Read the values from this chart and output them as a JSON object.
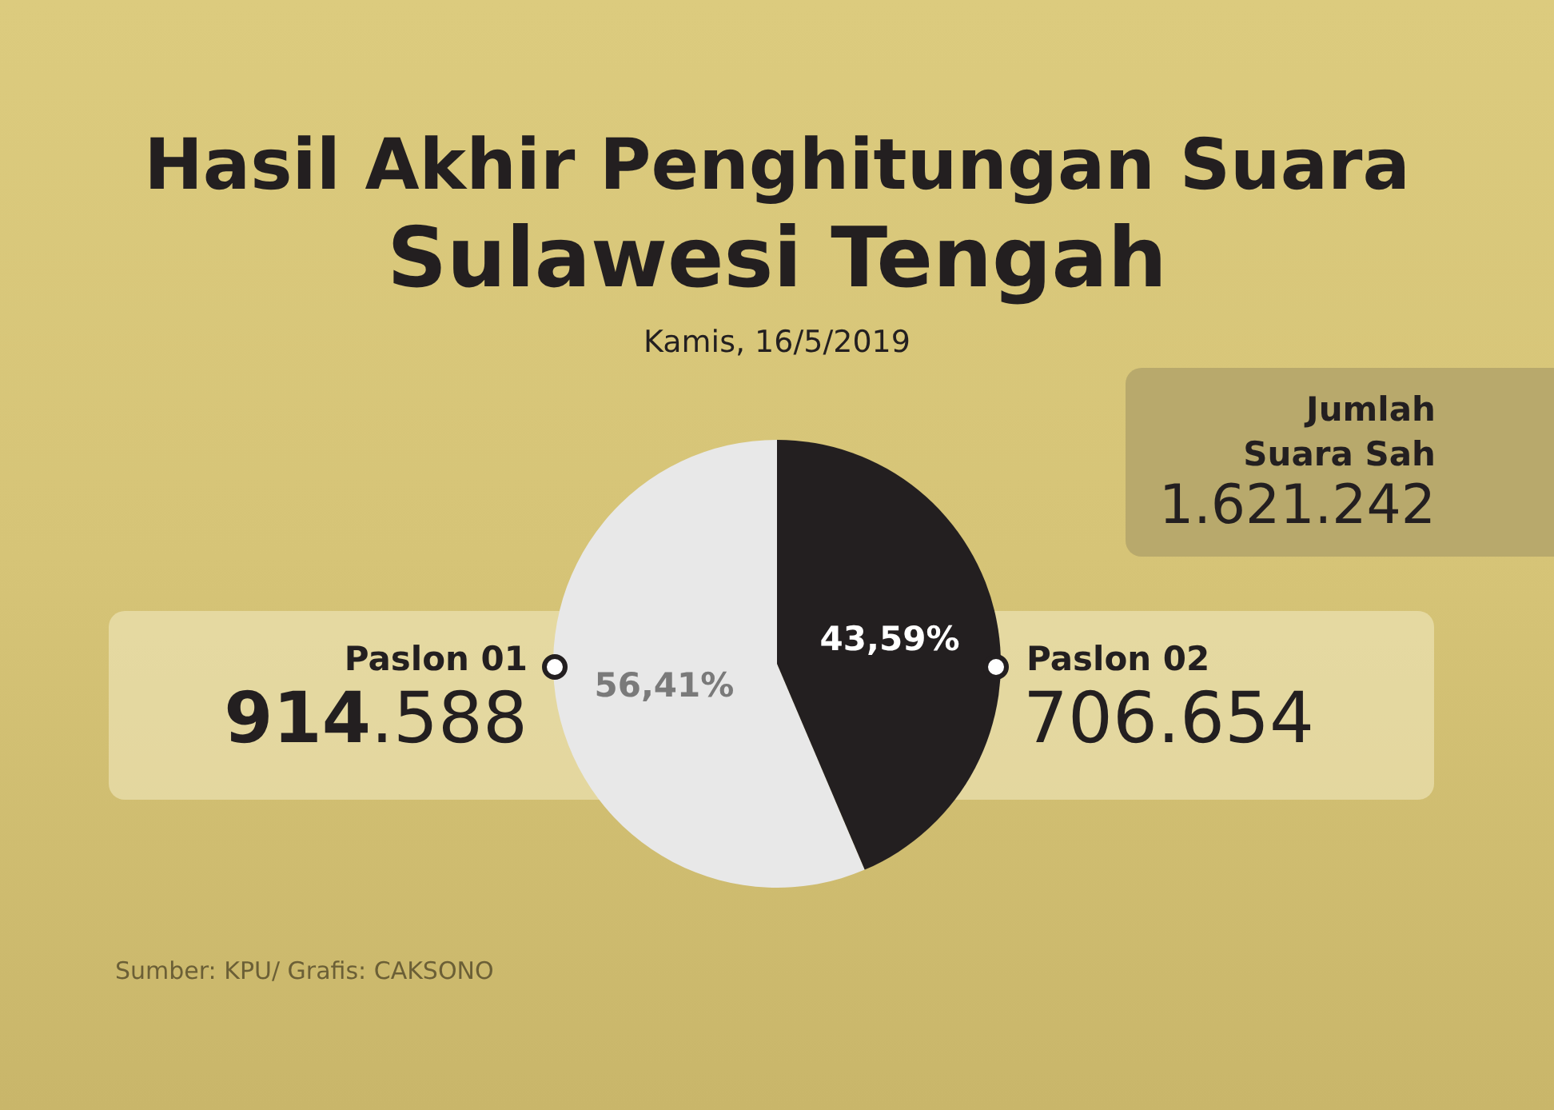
{
  "chart_data": {
    "type": "pie",
    "title": "Hasil Akhir Penghitungan Suara",
    "subtitle": "Sulawesi Tengah",
    "categories": [
      "Paslon 01",
      "Paslon 02"
    ],
    "values": [
      56.41,
      43.59
    ],
    "value_labels": [
      "56,41%",
      "43,59%"
    ],
    "colors": [
      "#e8e8e8",
      "#231f20"
    ],
    "annotations": [
      "Kamis, 16/5/2019",
      "914.588",
      "706.654",
      "Jumlah Suara Sah",
      "1.621.242",
      "Sumber: KPU/ Grafis: CAKSONO"
    ]
  }
}
